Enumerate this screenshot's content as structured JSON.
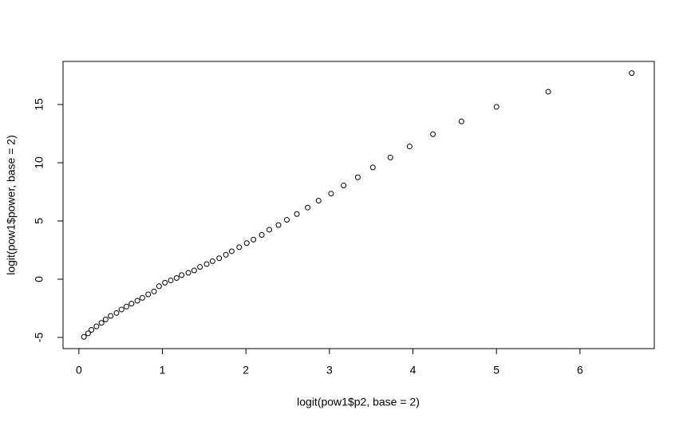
{
  "chart_data": {
    "type": "scatter",
    "x_label": "logit(pow1$p2, base = 2)",
    "y_label": "logit(pow1$power, base = 2)",
    "xlim": [
      -0.19,
      6.89
    ],
    "ylim": [
      -5.96,
      18.7
    ],
    "xticks": [
      0,
      1,
      2,
      3,
      4,
      5,
      6
    ],
    "yticks": [
      -5,
      0,
      5,
      10,
      15
    ],
    "color": "#000000",
    "x": [
      0.06,
      0.11,
      0.15,
      0.21,
      0.27,
      0.32,
      0.38,
      0.45,
      0.51,
      0.57,
      0.63,
      0.7,
      0.76,
      0.83,
      0.9,
      0.96,
      1.03,
      1.1,
      1.17,
      1.23,
      1.31,
      1.38,
      1.45,
      1.53,
      1.6,
      1.68,
      1.76,
      1.83,
      1.92,
      2.01,
      2.09,
      2.19,
      2.28,
      2.39,
      2.49,
      2.61,
      2.74,
      2.87,
      3.02,
      3.17,
      3.34,
      3.52,
      3.73,
      3.96,
      4.24,
      4.58,
      5.0,
      5.62,
      6.62
    ],
    "values": [
      -4.95,
      -4.65,
      -4.35,
      -4.05,
      -3.75,
      -3.45,
      -3.15,
      -2.9,
      -2.6,
      -2.35,
      -2.1,
      -1.85,
      -1.6,
      -1.3,
      -1.05,
      -0.6,
      -0.3,
      -0.1,
      0.1,
      0.35,
      0.55,
      0.75,
      1.05,
      1.3,
      1.55,
      1.8,
      2.1,
      2.4,
      2.75,
      3.1,
      3.4,
      3.8,
      4.25,
      4.65,
      5.1,
      5.6,
      6.15,
      6.75,
      7.35,
      8.05,
      8.75,
      9.6,
      10.45,
      11.4,
      12.45,
      13.55,
      14.8,
      16.1,
      17.7
    ]
  }
}
